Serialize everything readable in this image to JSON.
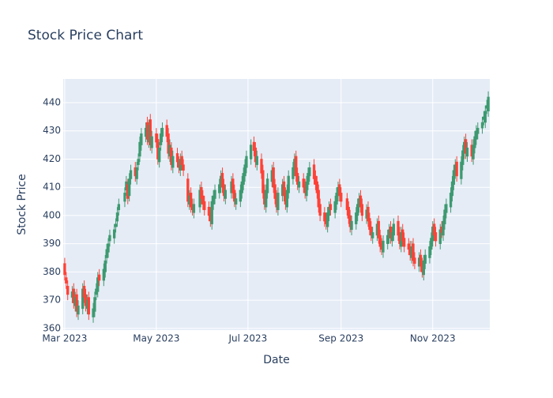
{
  "chart_data": {
    "type": "candlestick",
    "title": "Stock Price Chart",
    "x_label": "Date",
    "y_label": "Stock Price",
    "increasing_color": "#3d9970",
    "decreasing_color": "#ff4136",
    "grid": true,
    "xlim": [
      "2023-02-28",
      "2023-12-09"
    ],
    "xticks": [
      {
        "value": "2023-03-01",
        "label": "Mar 2023"
      },
      {
        "value": "2023-05-01",
        "label": "May 2023"
      },
      {
        "value": "2023-07-01",
        "label": "Jul 2023"
      },
      {
        "value": "2023-09-01",
        "label": "Sep 2023"
      },
      {
        "value": "2023-11-01",
        "label": "Nov 2023"
      }
    ],
    "ylim": [
      359.4,
      448.4
    ],
    "yticks": [
      360,
      370,
      380,
      390,
      400,
      410,
      420,
      430,
      440
    ],
    "x": [
      "2023-03-01",
      "2023-03-02",
      "2023-03-03",
      "2023-03-06",
      "2023-03-07",
      "2023-03-08",
      "2023-03-09",
      "2023-03-10",
      "2023-03-13",
      "2023-03-14",
      "2023-03-15",
      "2023-03-16",
      "2023-03-17",
      "2023-03-20",
      "2023-03-21",
      "2023-03-22",
      "2023-03-23",
      "2023-03-24",
      "2023-03-27",
      "2023-03-28",
      "2023-03-29",
      "2023-03-30",
      "2023-03-31",
      "2023-04-03",
      "2023-04-04",
      "2023-04-05",
      "2023-04-06",
      "2023-04-10",
      "2023-04-11",
      "2023-04-12",
      "2023-04-13",
      "2023-04-14",
      "2023-04-17",
      "2023-04-18",
      "2023-04-19",
      "2023-04-20",
      "2023-04-21",
      "2023-04-24",
      "2023-04-25",
      "2023-04-26",
      "2023-04-27",
      "2023-04-28",
      "2023-05-01",
      "2023-05-02",
      "2023-05-03",
      "2023-05-04",
      "2023-05-05",
      "2023-05-08",
      "2023-05-09",
      "2023-05-10",
      "2023-05-11",
      "2023-05-12",
      "2023-05-15",
      "2023-05-16",
      "2023-05-17",
      "2023-05-18",
      "2023-05-19",
      "2023-05-22",
      "2023-05-23",
      "2023-05-24",
      "2023-05-25",
      "2023-05-26",
      "2023-05-30",
      "2023-05-31",
      "2023-06-01",
      "2023-06-02",
      "2023-06-05",
      "2023-06-06",
      "2023-06-07",
      "2023-06-08",
      "2023-06-09",
      "2023-06-12",
      "2023-06-13",
      "2023-06-14",
      "2023-06-15",
      "2023-06-16",
      "2023-06-20",
      "2023-06-21",
      "2023-06-22",
      "2023-06-23",
      "2023-06-26",
      "2023-06-27",
      "2023-06-28",
      "2023-06-29",
      "2023-06-30",
      "2023-07-03",
      "2023-07-05",
      "2023-07-06",
      "2023-07-07",
      "2023-07-10",
      "2023-07-11",
      "2023-07-12",
      "2023-07-13",
      "2023-07-14",
      "2023-07-17",
      "2023-07-18",
      "2023-07-19",
      "2023-07-20",
      "2023-07-21",
      "2023-07-24",
      "2023-07-25",
      "2023-07-26",
      "2023-07-27",
      "2023-07-28",
      "2023-07-31",
      "2023-08-01",
      "2023-08-02",
      "2023-08-03",
      "2023-08-04",
      "2023-08-07",
      "2023-08-08",
      "2023-08-09",
      "2023-08-10",
      "2023-08-11",
      "2023-08-14",
      "2023-08-15",
      "2023-08-16",
      "2023-08-17",
      "2023-08-18",
      "2023-08-21",
      "2023-08-22",
      "2023-08-23",
      "2023-08-24",
      "2023-08-25",
      "2023-08-28",
      "2023-08-29",
      "2023-08-30",
      "2023-08-31",
      "2023-09-01",
      "2023-09-05",
      "2023-09-06",
      "2023-09-07",
      "2023-09-08",
      "2023-09-11",
      "2023-09-12",
      "2023-09-13",
      "2023-09-14",
      "2023-09-15",
      "2023-09-18",
      "2023-09-19",
      "2023-09-20",
      "2023-09-21",
      "2023-09-22",
      "2023-09-25",
      "2023-09-26",
      "2023-09-27",
      "2023-09-28",
      "2023-09-29",
      "2023-10-02",
      "2023-10-03",
      "2023-10-04",
      "2023-10-05",
      "2023-10-06",
      "2023-10-09",
      "2023-10-10",
      "2023-10-11",
      "2023-10-12",
      "2023-10-13",
      "2023-10-16",
      "2023-10-17",
      "2023-10-18",
      "2023-10-19",
      "2023-10-20",
      "2023-10-23",
      "2023-10-24",
      "2023-10-25",
      "2023-10-26",
      "2023-10-27",
      "2023-10-30",
      "2023-10-31",
      "2023-11-01",
      "2023-11-02",
      "2023-11-03",
      "2023-11-06",
      "2023-11-07",
      "2023-11-08",
      "2023-11-09",
      "2023-11-10",
      "2023-11-13",
      "2023-11-14",
      "2023-11-15",
      "2023-11-16",
      "2023-11-17",
      "2023-11-20",
      "2023-11-21",
      "2023-11-22",
      "2023-11-23",
      "2023-11-24",
      "2023-11-27",
      "2023-11-28",
      "2023-11-29",
      "2023-11-30",
      "2023-12-01",
      "2023-12-04",
      "2023-12-05",
      "2023-12-06",
      "2023-12-07",
      "2023-12-08"
    ],
    "open": [
      383,
      378,
      375,
      371,
      374,
      368,
      372,
      365,
      367,
      375,
      372,
      367,
      371,
      364,
      366,
      372,
      373,
      379,
      377,
      380,
      385,
      387,
      391,
      392,
      396,
      398,
      402,
      405,
      409,
      411,
      407,
      413,
      417,
      413,
      418,
      421,
      425,
      428,
      433,
      426,
      434,
      424,
      429,
      427,
      419,
      425,
      428,
      432,
      429,
      421,
      424,
      417,
      422,
      419,
      416,
      421,
      418,
      413,
      404,
      408,
      404,
      401,
      403,
      410,
      407,
      405,
      403,
      401,
      397,
      404,
      406,
      408,
      410,
      415,
      411,
      406,
      408,
      413,
      409,
      404,
      405,
      408,
      411,
      414,
      417,
      420,
      426,
      424,
      418,
      420,
      416,
      409,
      403,
      408,
      412,
      417,
      411,
      407,
      402,
      407,
      412,
      408,
      403,
      408,
      413,
      416,
      421,
      415,
      410,
      413,
      411,
      407,
      411,
      414,
      418,
      414,
      412,
      409,
      404,
      401,
      399,
      396,
      400,
      404,
      401,
      404,
      407,
      411,
      408,
      406,
      403,
      400,
      395,
      397,
      400,
      403,
      407,
      404,
      399,
      403,
      399,
      396,
      392,
      393,
      398,
      393,
      390,
      387,
      390,
      392,
      396,
      391,
      393,
      398,
      394,
      389,
      395,
      392,
      390,
      389,
      385,
      390,
      385,
      382,
      386,
      383,
      379,
      383,
      385,
      388,
      391,
      397,
      394,
      390,
      396,
      393,
      397,
      401,
      403,
      407,
      411,
      415,
      419,
      413,
      418,
      422,
      427,
      421,
      425,
      420,
      424,
      427,
      429,
      431,
      434,
      433,
      438,
      437
    ],
    "high": [
      385,
      380,
      377,
      375,
      376,
      373,
      374,
      370,
      376,
      377,
      374,
      372,
      373,
      369,
      373,
      376,
      380,
      381,
      383,
      386,
      390,
      392,
      395,
      397,
      399,
      403,
      406,
      410,
      414,
      413,
      415,
      418,
      419,
      419,
      422,
      428,
      431,
      433,
      435,
      434,
      436,
      430,
      431,
      429,
      426,
      431,
      433,
      434,
      431,
      427,
      426,
      423,
      424,
      421,
      422,
      423,
      420,
      415,
      409,
      410,
      406,
      406,
      411,
      412,
      409,
      407,
      405,
      403,
      407,
      409,
      411,
      413,
      416,
      417,
      413,
      411,
      414,
      415,
      411,
      408,
      411,
      414,
      417,
      420,
      423,
      427,
      428,
      426,
      423,
      422,
      418,
      411,
      411,
      415,
      418,
      419,
      413,
      409,
      410,
      413,
      414,
      410,
      411,
      416,
      419,
      422,
      423,
      417,
      414,
      415,
      413,
      414,
      417,
      419,
      420,
      416,
      414,
      411,
      406,
      403,
      401,
      403,
      405,
      406,
      407,
      410,
      412,
      413,
      410,
      408,
      405,
      402,
      400,
      403,
      406,
      408,
      409,
      406,
      404,
      405,
      401,
      398,
      396,
      399,
      400,
      395,
      392,
      393,
      395,
      397,
      398,
      396,
      399,
      400,
      396,
      396,
      397,
      394,
      392,
      391,
      391,
      392,
      387,
      387,
      388,
      385,
      386,
      388,
      391,
      394,
      398,
      399,
      396,
      397,
      398,
      400,
      404,
      406,
      410,
      414,
      418,
      420,
      421,
      421,
      425,
      428,
      429,
      426,
      427,
      427,
      430,
      432,
      433,
      435,
      437,
      439,
      441,
      444
    ],
    "low": [
      377,
      374,
      370,
      369,
      367,
      366,
      364,
      363,
      365,
      369,
      366,
      365,
      363,
      362,
      364,
      370,
      371,
      375,
      375,
      378,
      383,
      385,
      389,
      390,
      394,
      396,
      400,
      403,
      407,
      404,
      405,
      411,
      412,
      411,
      416,
      419,
      423,
      426,
      425,
      424,
      423,
      422,
      424,
      418,
      417,
      423,
      426,
      426,
      420,
      419,
      416,
      415,
      417,
      415,
      414,
      416,
      414,
      403,
      402,
      401,
      400,
      399,
      401,
      404,
      402,
      400,
      398,
      396,
      395,
      402,
      404,
      406,
      408,
      408,
      405,
      404,
      406,
      406,
      403,
      402,
      403,
      406,
      409,
      412,
      415,
      418,
      421,
      417,
      416,
      413,
      406,
      402,
      401,
      406,
      410,
      408,
      404,
      401,
      400,
      405,
      405,
      402,
      401,
      406,
      411,
      414,
      412,
      409,
      408,
      408,
      406,
      405,
      409,
      412,
      411,
      409,
      406,
      401,
      398,
      396,
      395,
      394,
      398,
      400,
      399,
      402,
      405,
      405,
      403,
      400,
      397,
      394,
      393,
      395,
      398,
      401,
      401,
      398,
      397,
      396,
      393,
      391,
      390,
      391,
      390,
      387,
      386,
      385,
      388,
      390,
      390,
      389,
      391,
      391,
      388,
      387,
      389,
      387,
      386,
      384,
      383,
      382,
      381,
      380,
      380,
      378,
      377,
      381,
      383,
      386,
      389,
      391,
      389,
      388,
      392,
      391,
      395,
      399,
      401,
      405,
      409,
      413,
      412,
      411,
      416,
      420,
      420,
      419,
      419,
      418,
      422,
      425,
      427,
      429,
      432,
      431,
      436,
      435
    ],
    "close": [
      379,
      376,
      372,
      373,
      369,
      371,
      366,
      368,
      374,
      371,
      368,
      370,
      365,
      367,
      371,
      374,
      378,
      377,
      381,
      384,
      388,
      390,
      393,
      395,
      397,
      401,
      404,
      408,
      412,
      406,
      413,
      416,
      414,
      417,
      420,
      426,
      429,
      431,
      427,
      432,
      425,
      428,
      426,
      420,
      424,
      429,
      431,
      428,
      422,
      425,
      418,
      421,
      419,
      417,
      420,
      418,
      416,
      405,
      407,
      403,
      402,
      404,
      409,
      406,
      404,
      402,
      400,
      398,
      405,
      407,
      409,
      411,
      414,
      410,
      407,
      409,
      412,
      408,
      405,
      406,
      409,
      412,
      415,
      418,
      421,
      425,
      423,
      419,
      421,
      415,
      408,
      404,
      409,
      413,
      416,
      410,
      406,
      403,
      408,
      411,
      407,
      404,
      409,
      414,
      417,
      420,
      414,
      411,
      412,
      410,
      408,
      412,
      415,
      417,
      413,
      411,
      408,
      403,
      400,
      398,
      397,
      401,
      403,
      402,
      405,
      408,
      410,
      407,
      405,
      402,
      399,
      396,
      398,
      401,
      404,
      406,
      403,
      400,
      402,
      398,
      395,
      393,
      394,
      397,
      392,
      389,
      388,
      391,
      393,
      395,
      392,
      394,
      397,
      393,
      390,
      394,
      391,
      389,
      388,
      386,
      389,
      384,
      383,
      385,
      382,
      380,
      384,
      386,
      389,
      392,
      396,
      393,
      391,
      395,
      394,
      398,
      402,
      404,
      408,
      412,
      416,
      418,
      414,
      419,
      423,
      426,
      422,
      424,
      421,
      425,
      428,
      430,
      431,
      433,
      435,
      437,
      439,
      442
    ]
  }
}
